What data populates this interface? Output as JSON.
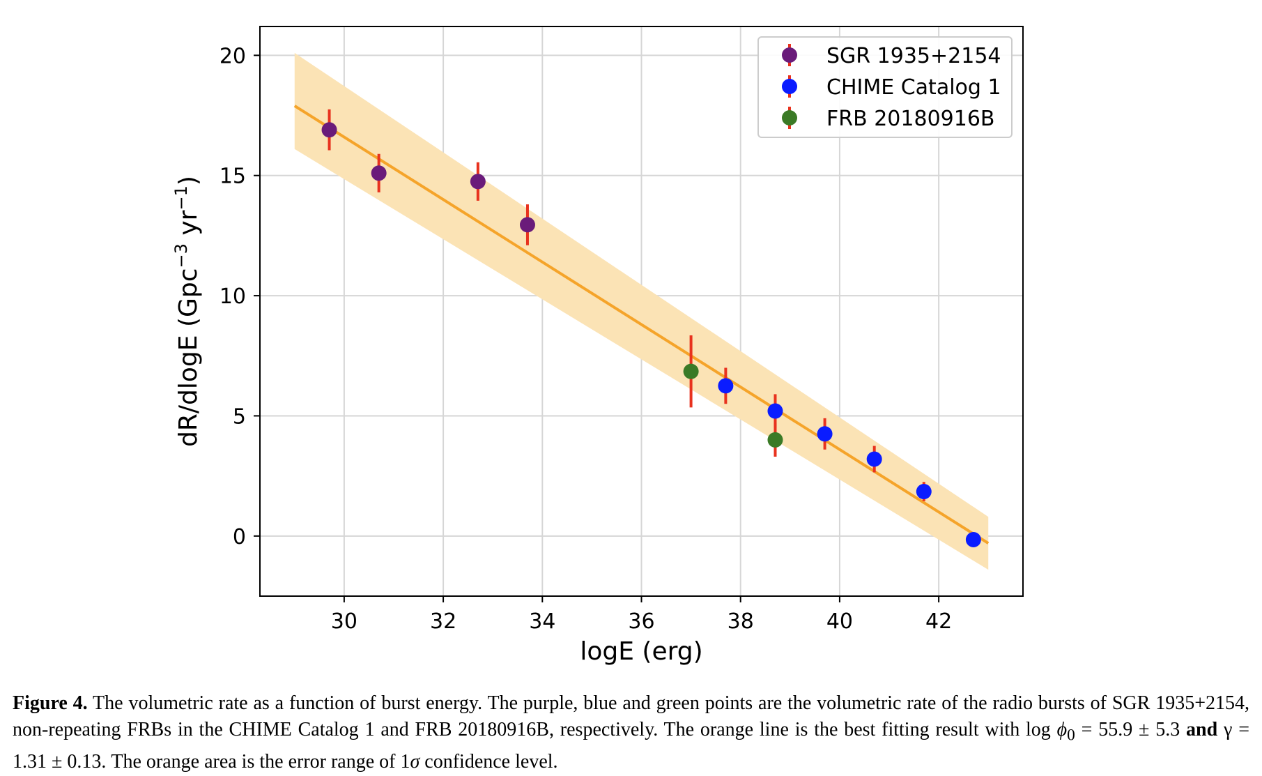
{
  "chart_data": {
    "type": "scatter",
    "xlabel": "logE (erg)",
    "ylabel": "dR/dlogE (Gpc",
    "ylabel_sup1": "−3",
    "ylabel_mid": " yr",
    "ylabel_sup2": "−1",
    "ylabel_end": ")",
    "xlim": [
      28.3,
      43.7
    ],
    "ylim": [
      -2.5,
      21.2
    ],
    "xticks": [
      30,
      32,
      34,
      36,
      38,
      40,
      42
    ],
    "yticks": [
      0,
      5,
      10,
      15,
      20
    ],
    "grid": true,
    "legend_position": "top-right",
    "colors": {
      "fit_line": "#f5a42a",
      "band": "#fbe3b5",
      "errorbar": "#e8321e",
      "grid": "#d6d6d6"
    },
    "fit": {
      "x_range": [
        29.0,
        43.0
      ],
      "y_at_start": 17.9,
      "y_at_end": -0.3,
      "band_upper": [
        20.1,
        0.8
      ],
      "band_lower": [
        16.1,
        -1.4
      ]
    },
    "series": [
      {
        "name": "SGR 1935+2154",
        "color": "#6a1b7a",
        "points": [
          {
            "x": 29.7,
            "y": 16.9,
            "err": 0.85
          },
          {
            "x": 30.7,
            "y": 15.1,
            "err": 0.8
          },
          {
            "x": 32.7,
            "y": 14.75,
            "err": 0.8
          },
          {
            "x": 33.7,
            "y": 12.95,
            "err": 0.85
          }
        ]
      },
      {
        "name": "CHIME Catalog 1",
        "color": "#0a1cff",
        "points": [
          {
            "x": 37.7,
            "y": 6.25,
            "err": 0.75
          },
          {
            "x": 38.7,
            "y": 5.2,
            "err": 0.7
          },
          {
            "x": 39.7,
            "y": 4.25,
            "err": 0.65
          },
          {
            "x": 40.7,
            "y": 3.2,
            "err": 0.55
          },
          {
            "x": 41.7,
            "y": 1.85,
            "err": 0.4
          },
          {
            "x": 42.7,
            "y": -0.15,
            "err": 0.25
          }
        ]
      },
      {
        "name": "FRB 20180916B",
        "color": "#3a7a26",
        "points": [
          {
            "x": 37.0,
            "y": 6.85,
            "err": 1.5
          },
          {
            "x": 38.7,
            "y": 4.0,
            "err": 0.7
          }
        ]
      }
    ]
  },
  "caption": {
    "label": "Figure 4.",
    "text1": " The volumetric rate as a function of burst energy. The purple, blue and green points are the volumetric rate of the radio bursts of SGR 1935+2154, non-repeating FRBs in the CHIME Catalog 1 and FRB 20180916B, respectively. The orange line is the best fitting result with log ",
    "phi": "ϕ",
    "sub0": "0",
    "text2": " = 55.9 ± 5.3 ",
    "and": "and",
    "text3": " γ = 1.31 ± 0.13. The orange area is the error range of 1",
    "sigma": "σ",
    "text4": " confidence level."
  }
}
